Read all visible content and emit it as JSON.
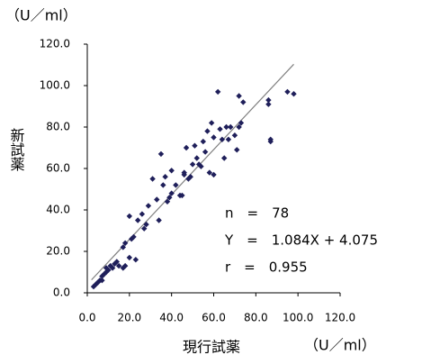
{
  "chart_data": {
    "type": "scatter",
    "y_unit": "（U／ml）",
    "x_unit": "（U／ml）",
    "x_label": "現行試薬",
    "y_label": "新試薬",
    "annotations": [
      "n　=　78",
      "Y　=　1.084X + 4.075",
      "r　=　0.955"
    ],
    "trendline": {
      "slope": 1.084,
      "intercept": 4.075,
      "color": "#808080"
    },
    "color": "#1f1f5a",
    "x": [
      3,
      4,
      5,
      6,
      7,
      7,
      8,
      9,
      9,
      10,
      11,
      12,
      13,
      14,
      15,
      17,
      18,
      17,
      20,
      21,
      22,
      20,
      24,
      26,
      27,
      28,
      29,
      31,
      33,
      34,
      35,
      36,
      37,
      38,
      39,
      40,
      40,
      42,
      44,
      45,
      46,
      47,
      48,
      49,
      50,
      51,
      52,
      53,
      54,
      55,
      56,
      57,
      58,
      59,
      60,
      60,
      62,
      63,
      64,
      65,
      66,
      67,
      68,
      70,
      71,
      72,
      72,
      73,
      74,
      86,
      86,
      87,
      87,
      95,
      98,
      46,
      23,
      18
    ],
    "y": [
      3,
      4,
      5,
      6,
      6,
      8,
      9,
      10,
      12,
      11,
      13,
      12,
      14,
      15,
      13,
      22,
      24,
      12,
      17,
      26,
      27,
      37,
      35,
      38,
      31,
      33,
      42,
      55,
      45,
      35,
      67,
      52,
      56,
      44,
      46,
      48,
      59,
      52,
      47,
      47,
      58,
      70,
      55,
      56,
      62,
      71,
      65,
      62,
      61,
      73,
      68,
      78,
      58,
      82,
      57,
      75,
      97,
      79,
      74,
      65,
      80,
      74,
      80,
      76,
      69,
      95,
      80,
      82,
      92,
      93,
      91,
      74,
      73,
      97,
      96,
      57,
      16,
      13
    ],
    "xlim": [
      0,
      120
    ],
    "ylim": [
      0,
      120
    ],
    "xticks": [
      {
        "value": 0,
        "label": "0.0"
      },
      {
        "value": 20,
        "label": "20.0"
      },
      {
        "value": 40,
        "label": "40.0"
      },
      {
        "value": 60,
        "label": "60.0"
      },
      {
        "value": 80,
        "label": "80.0"
      },
      {
        "value": 100,
        "label": "100.0"
      },
      {
        "value": 120,
        "label": "120.0"
      }
    ],
    "yticks": [
      {
        "value": 0,
        "label": "0.0"
      },
      {
        "value": 20,
        "label": "20.0"
      },
      {
        "value": 40,
        "label": "40.0"
      },
      {
        "value": 60,
        "label": "60.0"
      },
      {
        "value": 80,
        "label": "80.0"
      },
      {
        "value": 100,
        "label": "100.0"
      },
      {
        "value": 120,
        "label": "120.0"
      }
    ]
  }
}
